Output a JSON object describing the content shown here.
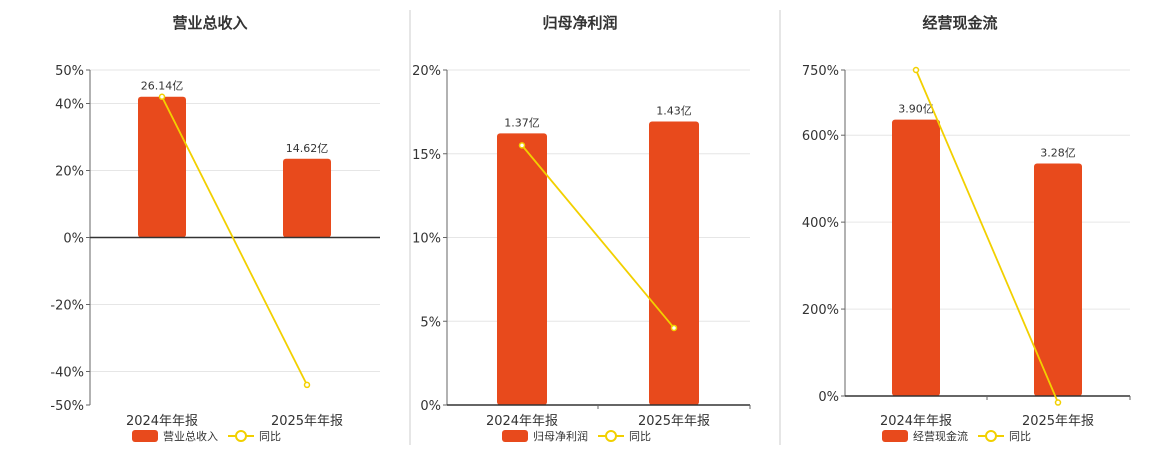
{
  "chart_data": [
    {
      "type": "bar",
      "title": "营业总收入",
      "categories": [
        "2024年年报",
        "2025年年报"
      ],
      "bar_series": {
        "name": "营业总收入",
        "values": [
          26.14,
          14.62
        ],
        "labels": [
          "26.14亿",
          "14.62亿"
        ],
        "color": "#e84a1c"
      },
      "line_series": {
        "name": "同比",
        "values": [
          42,
          -44
        ],
        "color": "#f2d000"
      },
      "ylim": [
        -50,
        50
      ],
      "yticks": [
        50,
        40,
        20,
        0,
        -20,
        -40,
        -50
      ],
      "ytick_labels": [
        "50%",
        "40%",
        "20%",
        "0%",
        "-20%",
        "-40%",
        "-50%"
      ],
      "bar_axis_max": 31.1,
      "grid": true,
      "legend": "bottom"
    },
    {
      "type": "bar",
      "title": "归母净利润",
      "categories": [
        "2024年年报",
        "2025年年报"
      ],
      "bar_series": {
        "name": "归母净利润",
        "values": [
          1.37,
          1.43
        ],
        "labels": [
          "1.37亿",
          "1.43亿"
        ],
        "color": "#e84a1c"
      },
      "line_series": {
        "name": "同比",
        "values": [
          15.5,
          4.6
        ],
        "color": "#f2d000"
      },
      "ylim": [
        0,
        20
      ],
      "yticks": [
        20,
        15,
        10,
        5,
        0
      ],
      "ytick_labels": [
        "20%",
        "15%",
        "10%",
        "5%",
        "0%"
      ],
      "bar_axis_max": 1.69,
      "grid": true,
      "legend": "bottom"
    },
    {
      "type": "bar",
      "title": "经营现金流",
      "categories": [
        "2024年年报",
        "2025年年报"
      ],
      "bar_series": {
        "name": "经营现金流",
        "values": [
          3.9,
          3.28
        ],
        "labels": [
          "3.90亿",
          "3.28亿"
        ],
        "color": "#e84a1c"
      },
      "line_series": {
        "name": "同比",
        "values": [
          750,
          -15
        ],
        "color": "#f2d000"
      },
      "ylim": [
        0,
        750
      ],
      "yticks": [
        750,
        600,
        400,
        200,
        0
      ],
      "ytick_labels": [
        "750%",
        "600%",
        "400%",
        "200%",
        "0%"
      ],
      "bar_axis_max": 4.6,
      "grid": true,
      "legend": "bottom"
    }
  ]
}
